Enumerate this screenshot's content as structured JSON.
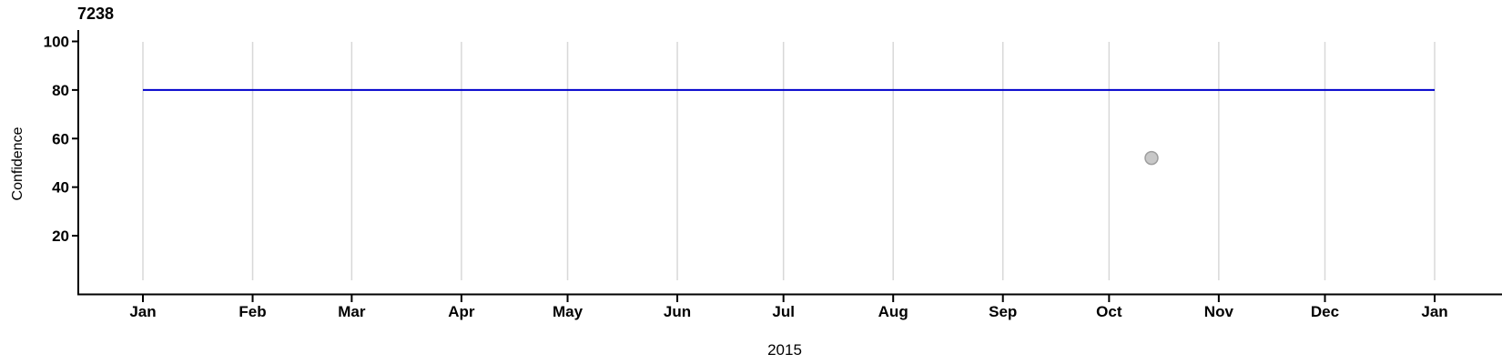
{
  "page": {
    "background": "#FFFFFF"
  },
  "chart_data": {
    "type": "line",
    "title": "7238",
    "ylabel": "Confidence",
    "xlabel": "2015",
    "y_ticks": [
      20,
      40,
      60,
      80,
      100
    ],
    "ylim": [
      -5,
      105
    ],
    "x_tick_labels": [
      "Jan",
      "Feb",
      "Mar",
      "Apr",
      "May",
      "Jun",
      "Jul",
      "Aug",
      "Sep",
      "Oct",
      "Nov",
      "Dec",
      "Jan"
    ],
    "x_tick_day_offsets": [
      0,
      31,
      59,
      90,
      120,
      151,
      181,
      212,
      243,
      273,
      304,
      334,
      365
    ],
    "grid": {
      "vertical": true,
      "horizontal": false,
      "color": "#D8D8D8"
    },
    "axis_color": "#000000",
    "series": [
      {
        "name": "confidence-level-line",
        "type": "constant-line",
        "value": 80,
        "start_day": 0,
        "end_day": 365,
        "color": "#0000CC"
      }
    ],
    "points": [
      {
        "name": "forecast-point",
        "day": 285,
        "value": 52,
        "fill": "#C8C8C8",
        "stroke": "#9E9E9E"
      }
    ]
  }
}
